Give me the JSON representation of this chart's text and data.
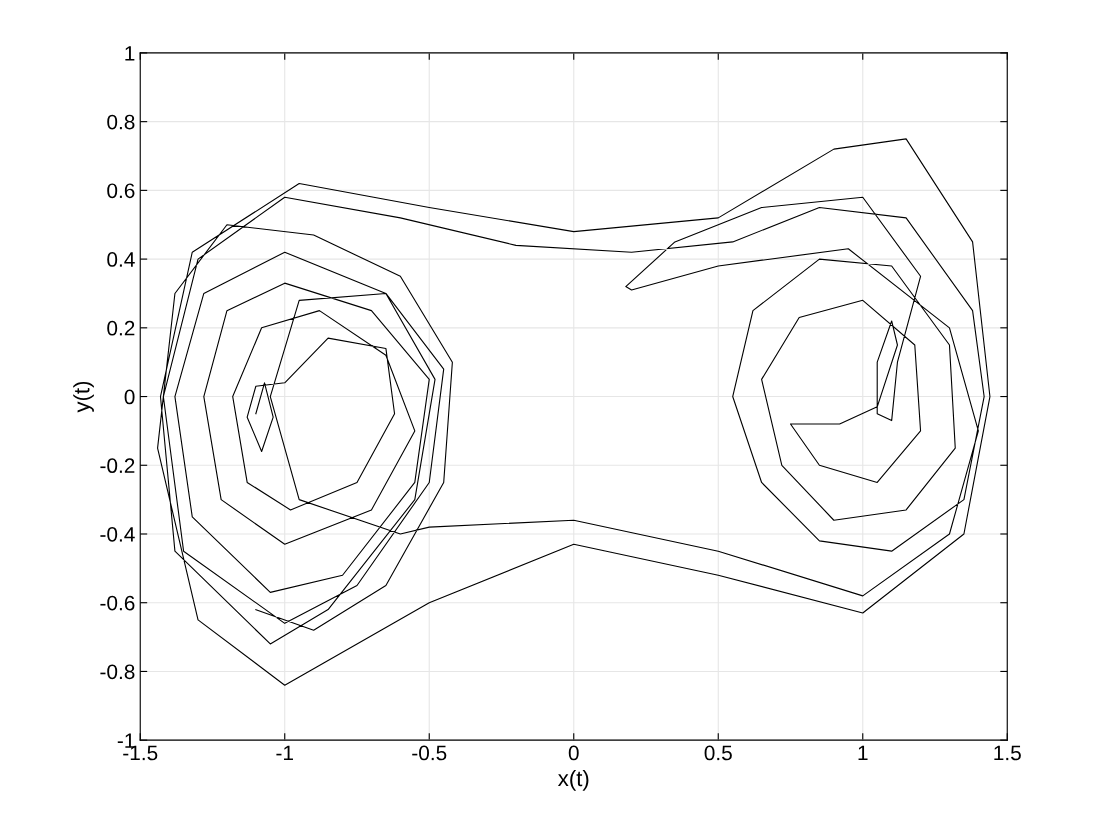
{
  "chart_data": {
    "type": "line",
    "xlabel": "x(t)",
    "ylabel": "y(t)",
    "xlim": [
      -1.5,
      1.5
    ],
    "ylim": [
      -1,
      1
    ],
    "xticks": [
      -1.5,
      -1,
      -0.5,
      0,
      0.5,
      1,
      1.5
    ],
    "yticks": [
      -1,
      -0.8,
      -0.6,
      -0.4,
      -0.2,
      0,
      0.2,
      0.4,
      0.6,
      0.8,
      1
    ],
    "grid": true,
    "marker": "none",
    "line_style": "solid",
    "series": [
      {
        "color": "#000000",
        "x": [
          -1.1,
          -1.07,
          -1.04,
          -1.08,
          -1.13,
          -1.1,
          -1.0,
          -0.85,
          -0.65,
          -0.62,
          -0.75,
          -0.98,
          -1.13,
          -1.18,
          -1.08,
          -0.88,
          -0.65,
          -0.55,
          -0.7,
          -1.0,
          -1.22,
          -1.28,
          -1.2,
          -1.0,
          -0.7,
          -0.5,
          -0.55,
          -0.8,
          -1.05,
          -1.32,
          -1.38,
          -1.28,
          -1.0,
          -0.65,
          -0.45,
          -0.5,
          -0.75,
          -1.0,
          -1.35,
          -1.42,
          -1.3,
          -1.0,
          -0.6,
          -0.2,
          0.2,
          0.55,
          0.85,
          1.15,
          1.38,
          1.42,
          1.35,
          1.1,
          0.85,
          0.65,
          0.55,
          0.62,
          0.85,
          1.1,
          1.3,
          1.32,
          1.15,
          0.9,
          0.72,
          0.65,
          0.78,
          1.0,
          1.18,
          1.2,
          1.05,
          0.85,
          0.75,
          0.92,
          1.05,
          1.12,
          1.1,
          1.05,
          1.05,
          1.1,
          1.12,
          1.2,
          1.0,
          0.65,
          0.35,
          0.18,
          0.2,
          0.5,
          0.95,
          1.3,
          1.4,
          1.3,
          1.0,
          0.5,
          0.0,
          -0.5,
          -0.6,
          -0.95,
          -1.05,
          -0.95,
          -0.65,
          -0.48,
          -0.55,
          -0.85,
          -1.05,
          -1.38,
          -1.43,
          -1.32,
          -0.95,
          -0.5,
          0.0,
          0.5,
          0.9,
          1.15,
          1.38,
          1.44,
          1.35,
          1.0,
          0.5,
          0.0,
          -0.5,
          -1.0,
          -1.3,
          -1.44,
          -1.38,
          -1.2,
          -0.9,
          -0.6,
          -0.42,
          -0.45,
          -0.65,
          -0.9,
          -1.1
        ],
        "values": [
          -0.05,
          0.04,
          -0.06,
          -0.16,
          -0.06,
          0.03,
          0.04,
          0.17,
          0.14,
          -0.05,
          -0.25,
          -0.33,
          -0.25,
          0.0,
          0.2,
          0.25,
          0.12,
          -0.1,
          -0.33,
          -0.43,
          -0.3,
          0.0,
          0.25,
          0.33,
          0.25,
          0.05,
          -0.25,
          -0.52,
          -0.57,
          -0.35,
          0.0,
          0.3,
          0.42,
          0.3,
          0.08,
          -0.25,
          -0.55,
          -0.66,
          -0.45,
          0.0,
          0.4,
          0.58,
          0.52,
          0.44,
          0.42,
          0.45,
          0.55,
          0.52,
          0.25,
          0.0,
          -0.3,
          -0.45,
          -0.42,
          -0.25,
          0.0,
          0.25,
          0.4,
          0.38,
          0.15,
          -0.15,
          -0.33,
          -0.36,
          -0.2,
          0.05,
          0.23,
          0.28,
          0.15,
          -0.1,
          -0.25,
          -0.2,
          -0.08,
          -0.08,
          -0.03,
          0.15,
          0.22,
          0.1,
          -0.05,
          -0.07,
          0.1,
          0.35,
          0.58,
          0.55,
          0.45,
          0.32,
          0.31,
          0.38,
          0.43,
          0.2,
          -0.1,
          -0.4,
          -0.58,
          -0.45,
          -0.36,
          -0.38,
          -0.4,
          -0.3,
          0.0,
          0.28,
          0.3,
          0.05,
          -0.3,
          -0.62,
          -0.72,
          -0.45,
          0.0,
          0.42,
          0.62,
          0.55,
          0.48,
          0.52,
          0.72,
          0.75,
          0.45,
          0.0,
          -0.4,
          -0.63,
          -0.52,
          -0.43,
          -0.6,
          -0.84,
          -0.65,
          -0.15,
          0.3,
          0.5,
          0.47,
          0.35,
          0.1,
          -0.25,
          -0.55,
          -0.68,
          -0.62
        ]
      }
    ]
  }
}
